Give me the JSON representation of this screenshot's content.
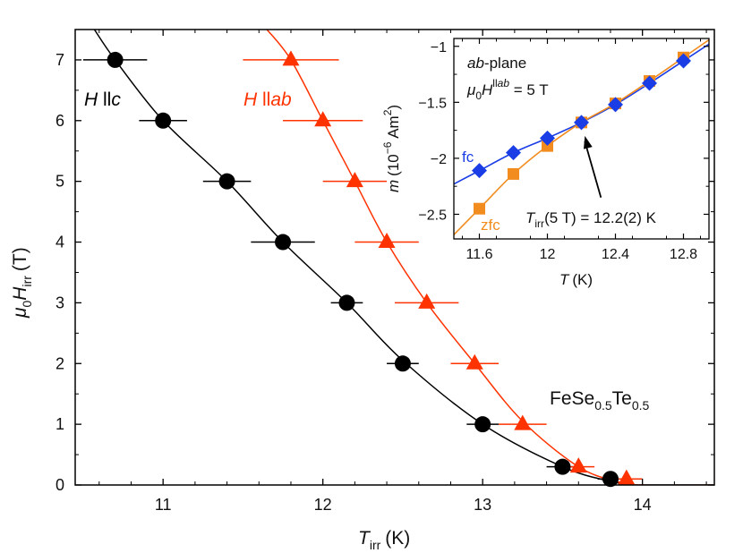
{
  "chart_data": [
    {
      "type": "scatter",
      "xlabel_main": "T",
      "xlabel_sub": "irr",
      "xlabel_unit": "(K)",
      "ylabel_prefix": "μ",
      "ylabel_prefix_sub": "0",
      "ylabel_main": "H",
      "ylabel_sub": "irr",
      "ylabel_unit": "(T)",
      "xlim": [
        10.45,
        14.45
      ],
      "ylim": [
        0,
        7.5
      ],
      "xticks": [
        11,
        12,
        13,
        14
      ],
      "yticks": [
        0,
        1,
        2,
        3,
        4,
        5,
        6,
        7
      ],
      "compound": {
        "base1": "FeSe",
        "sub1": "0.5",
        "base2": "Te",
        "sub2": "0.5"
      },
      "series": [
        {
          "name": "H ll c",
          "label_main": "H",
          "label_rest": " ll",
          "label_italic": "c",
          "color": "#000000",
          "marker": "circle",
          "x": [
            10.7,
            11.0,
            11.4,
            11.75,
            12.15,
            12.5,
            13.0,
            13.5,
            13.8
          ],
          "y": [
            7,
            6,
            5,
            4,
            3,
            2,
            1,
            0.3,
            0.1
          ],
          "xerr": [
            0.2,
            0.15,
            0.15,
            0.2,
            0.1,
            0.1,
            0.1,
            0.1,
            0.08
          ],
          "fit": {
            "x": [
              10.57,
              10.7,
              11.0,
              11.4,
              11.75,
              12.15,
              12.5,
              13.0,
              13.5,
              13.8,
              13.95,
              14.0,
              14.45
            ],
            "y": [
              7.5,
              7.0,
              6.0,
              5.0,
              4.0,
              3.0,
              2.05,
              1.0,
              0.3,
              0.06,
              0.0,
              0.0,
              0.0
            ]
          }
        },
        {
          "name": "H ll ab",
          "label_main": "H",
          "label_rest": " ll",
          "label_italic": "ab",
          "color": "#ff3300",
          "marker": "triangle",
          "x": [
            11.8,
            12.0,
            12.2,
            12.4,
            12.65,
            12.95,
            13.25,
            13.6,
            13.9
          ],
          "y": [
            7,
            6,
            5,
            4,
            3,
            2,
            1,
            0.3,
            0.1
          ],
          "xerr": [
            0.3,
            0.25,
            0.2,
            0.2,
            0.2,
            0.15,
            0.15,
            0.1,
            0.1
          ],
          "fit": {
            "x": [
              11.65,
              11.8,
              12.0,
              12.2,
              12.4,
              12.65,
              12.95,
              13.25,
              13.6,
              13.85,
              14.0,
              14.45
            ],
            "y": [
              7.5,
              7.0,
              6.0,
              5.0,
              4.0,
              3.0,
              2.0,
              1.05,
              0.3,
              0.05,
              0.0,
              0.0
            ]
          }
        }
      ]
    },
    {
      "type": "line",
      "xlabel_main": "T",
      "xlabel_unit": "(K)",
      "ylabel_main": "m",
      "ylabel_open": "(10",
      "ylabel_exp": "−6",
      "ylabel_unit": " Am",
      "ylabel_unit_exp": "2",
      "ylabel_close": ")",
      "xlim": [
        11.45,
        12.95
      ],
      "ylim": [
        -2.72,
        -0.93
      ],
      "xticks": [
        11.6,
        12.0,
        12.4,
        12.8
      ],
      "xtick_labels": [
        "11.6",
        "12",
        "12.4",
        "12.8"
      ],
      "yticks": [
        -1.0,
        -1.5,
        -2.0,
        -2.5
      ],
      "ytick_labels": [
        "−1",
        "−1.5",
        "−2",
        "−2.5"
      ],
      "plane_italic": "ab",
      "plane_rest": "-plane",
      "field_prefix": "μ",
      "field_prefix_sub": "0",
      "field_main": "H",
      "field_sup": "ll",
      "field_sup_italic": "ab",
      "field_value": " = 5 T",
      "arrow_label_main": "T",
      "arrow_label_sub": "irr",
      "arrow_label_rest": "(5 T) = 12.2(2) K",
      "arrow_from": [
        12.22,
        -2.35
      ],
      "arrow_to": [
        12.22,
        -1.72
      ],
      "series": [
        {
          "name": "fc",
          "color": "#1a3de6",
          "marker": "diamond",
          "x": [
            11.6,
            11.8,
            12.0,
            12.2,
            12.4,
            12.6,
            12.8
          ],
          "y": [
            -2.11,
            -1.95,
            -1.82,
            -1.68,
            -1.52,
            -1.33,
            -1.13
          ]
        },
        {
          "name": "zfc",
          "color": "#f28c1e",
          "marker": "square",
          "x": [
            11.6,
            11.8,
            12.0,
            12.2,
            12.4,
            12.6,
            12.8
          ],
          "y": [
            -2.45,
            -2.14,
            -1.89,
            -1.68,
            -1.51,
            -1.31,
            -1.1
          ]
        }
      ]
    }
  ]
}
